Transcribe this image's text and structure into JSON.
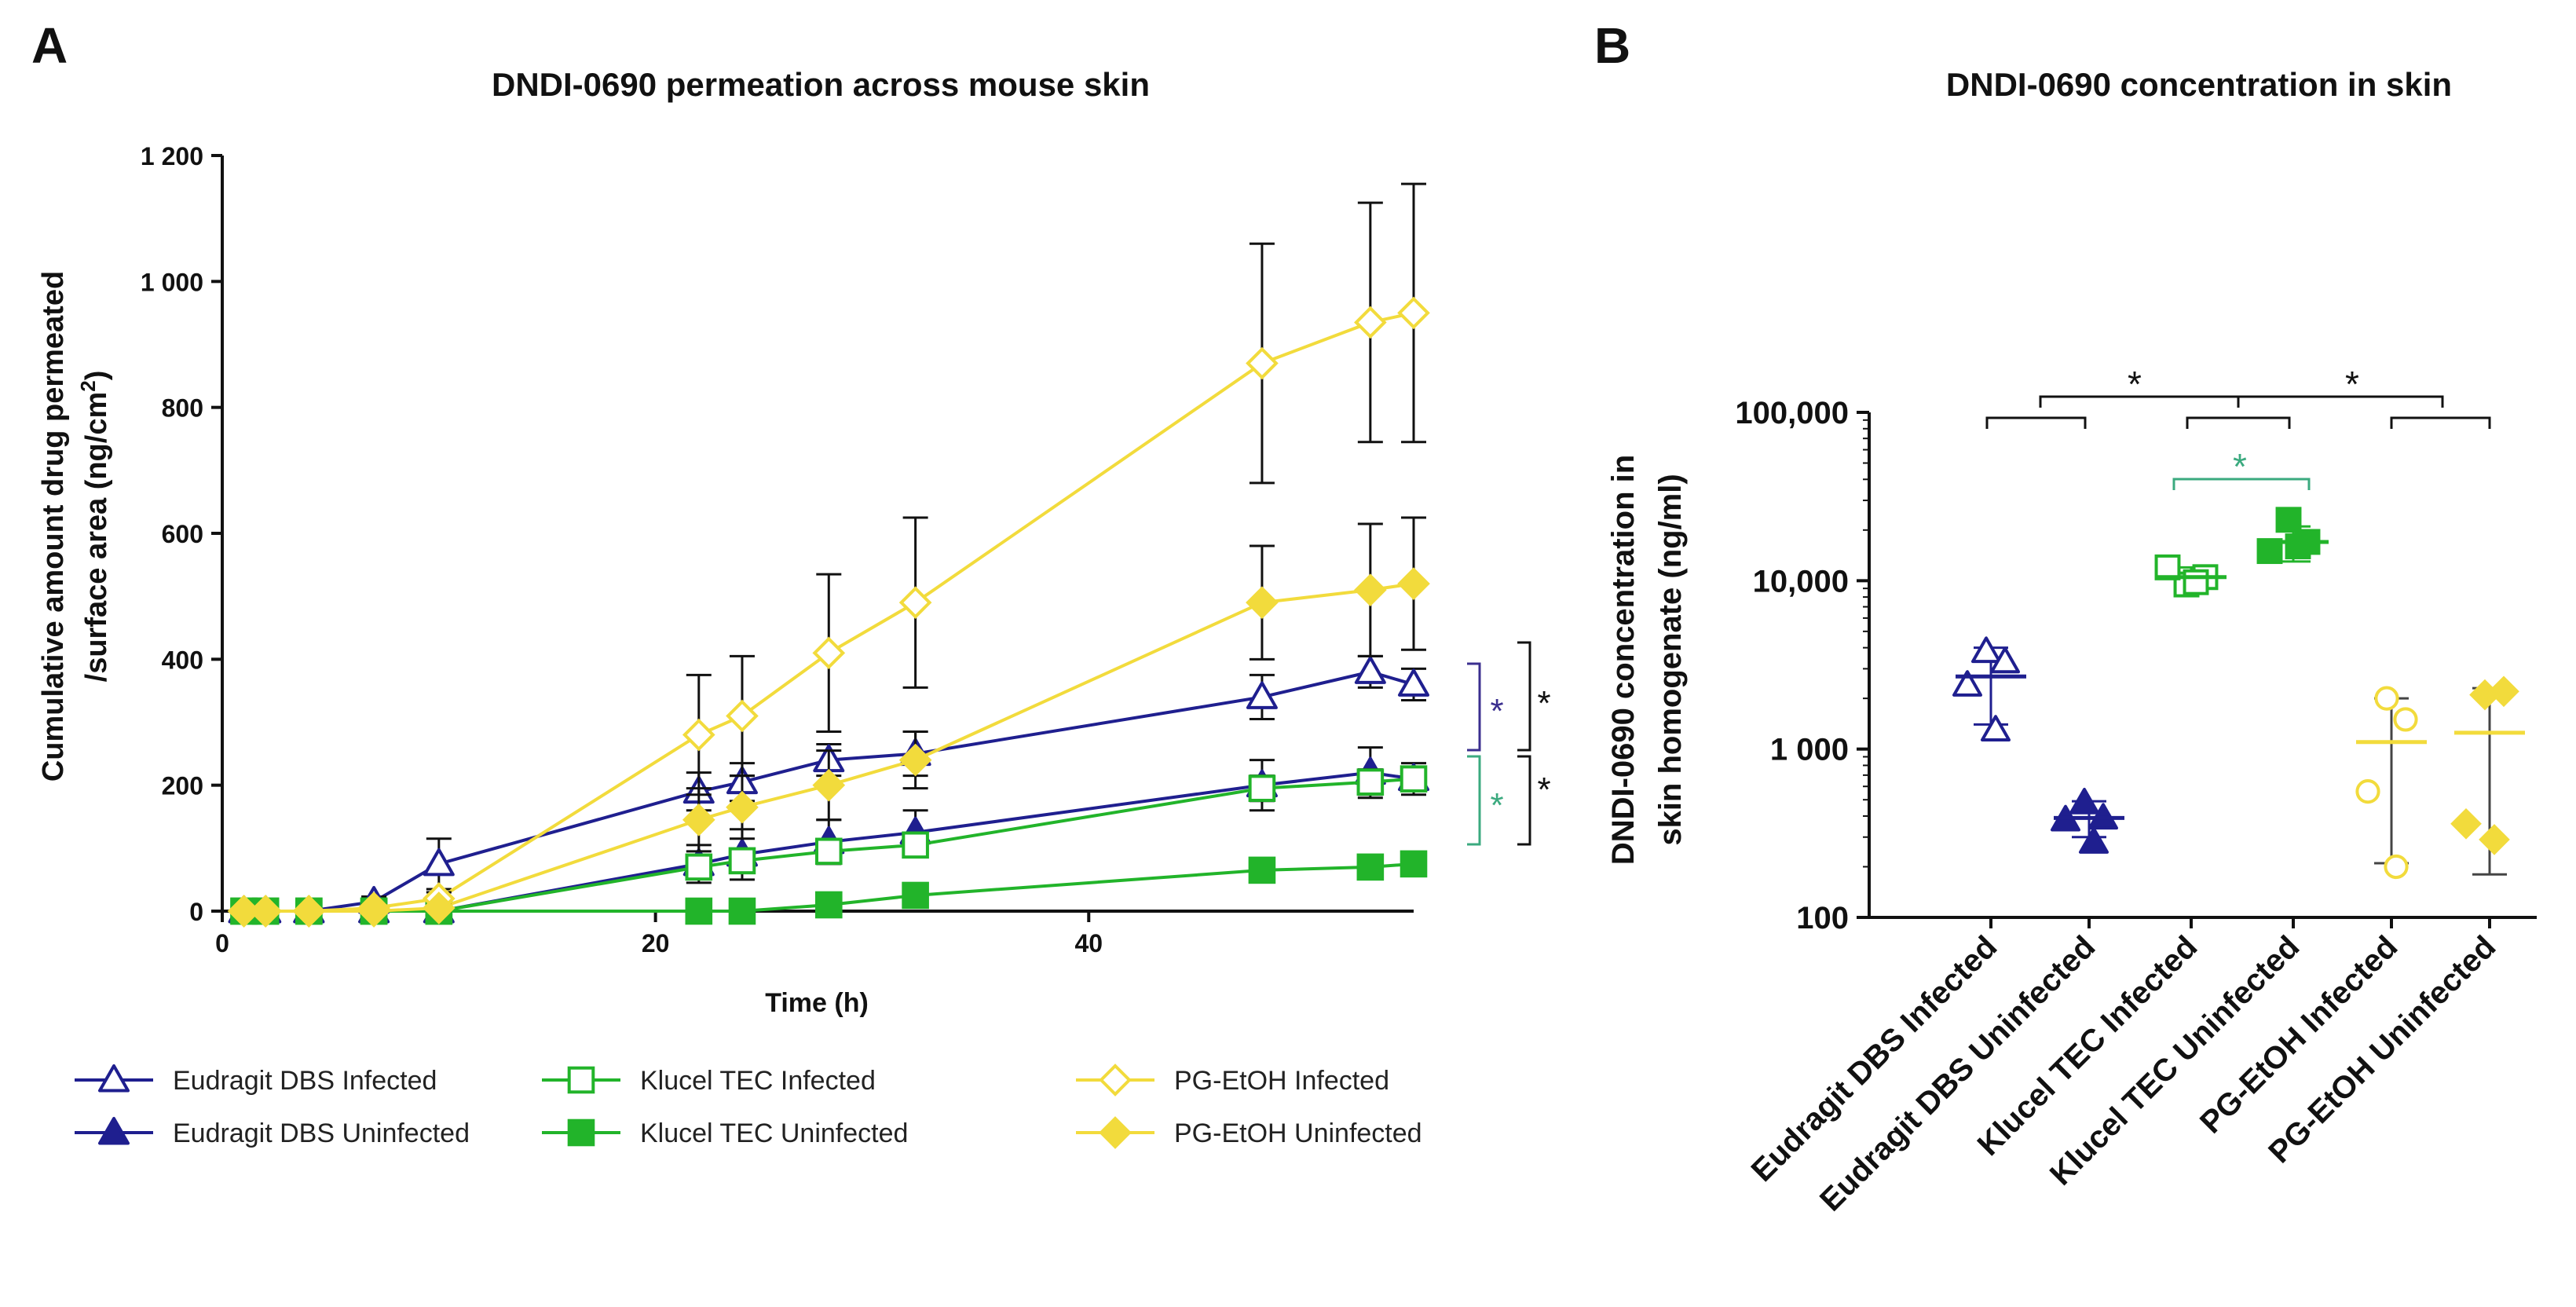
{
  "colors": {
    "navy": "#1F1F8F",
    "green": "#22B42A",
    "yellow": "#F2DB3C",
    "black": "#111111",
    "sig_navy": "#3B2F8F",
    "sig_green": "#3BAA7F"
  },
  "chart_data": [
    {
      "panel": "A",
      "type": "line",
      "title": "DNDI-0690 permeation across mouse skin",
      "xlabel": "Time (h)",
      "ylabel_line1": "Cumulative amount drug permeated",
      "ylabel_line2": "/surface area (ng/cm",
      "ylabel_sup": "2",
      "ylabel_end": ")",
      "xlim": [
        0,
        55
      ],
      "ylim": [
        0,
        1200
      ],
      "xticks": [
        0,
        20,
        40
      ],
      "yticks": [
        0,
        200,
        400,
        600,
        800,
        1000,
        1200
      ],
      "ytick_labels": [
        "0",
        "200",
        "400",
        "600",
        "800",
        "1 000",
        "1 200"
      ],
      "significance": [
        "*",
        "*",
        "*",
        "*"
      ],
      "legend_position": "bottom",
      "series": [
        {
          "name": "Eudragit DBS Infected",
          "color": "#1F1F8F",
          "marker": "triangle",
          "filled": false,
          "x": [
            1,
            2,
            4,
            7,
            10,
            22,
            24,
            28,
            32,
            48,
            53,
            55
          ],
          "y": [
            0,
            0,
            0,
            15,
            75,
            190,
            205,
            240,
            250,
            340,
            380,
            360
          ],
          "err": [
            0,
            0,
            0,
            8,
            40,
            30,
            30,
            25,
            35,
            35,
            25,
            25
          ]
        },
        {
          "name": "Eudragit DBS Uninfected",
          "color": "#1F1F8F",
          "marker": "triangle",
          "filled": true,
          "x": [
            1,
            2,
            4,
            7,
            10,
            22,
            24,
            28,
            32,
            48,
            53,
            55
          ],
          "y": [
            0,
            0,
            0,
            0,
            0,
            75,
            90,
            110,
            125,
            200,
            220,
            210
          ],
          "err": [
            0,
            0,
            0,
            0,
            0,
            30,
            40,
            35,
            35,
            40,
            40,
            25
          ]
        },
        {
          "name": "Klucel TEC Infected",
          "color": "#22B42A",
          "marker": "square",
          "filled": false,
          "x": [
            1,
            2,
            4,
            7,
            10,
            22,
            24,
            28,
            32,
            48,
            53,
            55
          ],
          "y": [
            0,
            0,
            0,
            0,
            0,
            70,
            80,
            95,
            105,
            195,
            205,
            210
          ],
          "err": [
            0,
            0,
            0,
            0,
            0,
            15,
            15,
            15,
            15,
            20,
            20,
            15
          ]
        },
        {
          "name": "Klucel TEC Uninfected",
          "color": "#22B42A",
          "marker": "square",
          "filled": true,
          "x": [
            1,
            2,
            4,
            7,
            10,
            22,
            24,
            28,
            32,
            48,
            53,
            55
          ],
          "y": [
            0,
            0,
            0,
            0,
            0,
            0,
            0,
            10,
            25,
            65,
            70,
            75
          ],
          "err": [
            0,
            0,
            0,
            0,
            0,
            0,
            0,
            5,
            5,
            10,
            10,
            10
          ]
        },
        {
          "name": "PG-EtOH Infected",
          "color": "#F2DB3C",
          "marker": "diamond",
          "filled": false,
          "x": [
            1,
            2,
            4,
            7,
            10,
            22,
            24,
            28,
            32,
            48,
            53,
            55
          ],
          "y": [
            0,
            0,
            0,
            5,
            20,
            280,
            310,
            410,
            490,
            870,
            935,
            950
          ],
          "err": [
            0,
            0,
            0,
            5,
            10,
            95,
            95,
            125,
            135,
            190,
            190,
            205
          ]
        },
        {
          "name": "PG-EtOH Uninfected",
          "color": "#F2DB3C",
          "marker": "diamond",
          "filled": true,
          "x": [
            1,
            2,
            4,
            7,
            10,
            22,
            24,
            28,
            32,
            48,
            53,
            55
          ],
          "y": [
            0,
            0,
            0,
            0,
            5,
            145,
            165,
            200,
            240,
            490,
            510,
            520
          ],
          "err": [
            0,
            0,
            0,
            0,
            5,
            50,
            50,
            55,
            45,
            90,
            105,
            105
          ]
        }
      ]
    },
    {
      "panel": "B",
      "type": "scatter",
      "title": "DNDI-0690 concentration in skin",
      "ylabel_line1": "DNDI-0690 concentration in",
      "ylabel_line2": "skin homogenate (ng/ml)",
      "yscale": "log",
      "ylim": [
        100,
        100000
      ],
      "yticks": [
        100,
        1000,
        10000,
        100000
      ],
      "ytick_labels": [
        "100",
        "1 000",
        "10,000",
        "100,000"
      ],
      "significance": [
        "*",
        "*",
        "*"
      ],
      "categories": [
        "Eudragit DBS Infected",
        "Eudragit DBS Uninfected",
        "Klucel TEC Infected",
        "Klucel TEC Uninfected",
        "PG-EtOH Infected",
        "PG-EtOH Uninfected"
      ],
      "groups": [
        {
          "category": "Eudragit DBS Infected",
          "color": "#1F1F8F",
          "marker": "triangle",
          "filled": false,
          "points": [
            3800,
            3300,
            2400,
            1300
          ],
          "mean": 2700,
          "sd_low": 1400,
          "sd_high": 4000
        },
        {
          "category": "Eudragit DBS Uninfected",
          "color": "#1F1F8F",
          "marker": "triangle",
          "filled": true,
          "points": [
            480,
            390,
            380,
            280
          ],
          "mean": 390,
          "sd_low": 300,
          "sd_high": 490
        },
        {
          "category": "Klucel TEC Infected",
          "color": "#22B42A",
          "marker": "square",
          "filled": false,
          "points": [
            9500,
            10500,
            12000,
            9800
          ],
          "mean": 10500,
          "sd_low": 9000,
          "sd_high": 12000
        },
        {
          "category": "Klucel TEC Uninfected",
          "color": "#22B42A",
          "marker": "square",
          "filled": true,
          "points": [
            23000,
            17000,
            15000,
            16000
          ],
          "mean": 17000,
          "sd_low": 13000,
          "sd_high": 21000
        },
        {
          "category": "PG-EtOH Infected",
          "color": "#F2DB3C",
          "marker": "circle",
          "filled": false,
          "points": [
            2000,
            1500,
            560,
            200
          ],
          "mean": 1100,
          "sd_low": 210,
          "sd_high": 2000
        },
        {
          "category": "PG-EtOH Uninfected",
          "color": "#F2DB3C",
          "marker": "diamond",
          "filled": true,
          "points": [
            2100,
            2200,
            360,
            290
          ],
          "mean": 1250,
          "sd_low": 180,
          "sd_high": 2300
        }
      ]
    }
  ],
  "panel_labels": {
    "a": "A",
    "b": "B"
  }
}
